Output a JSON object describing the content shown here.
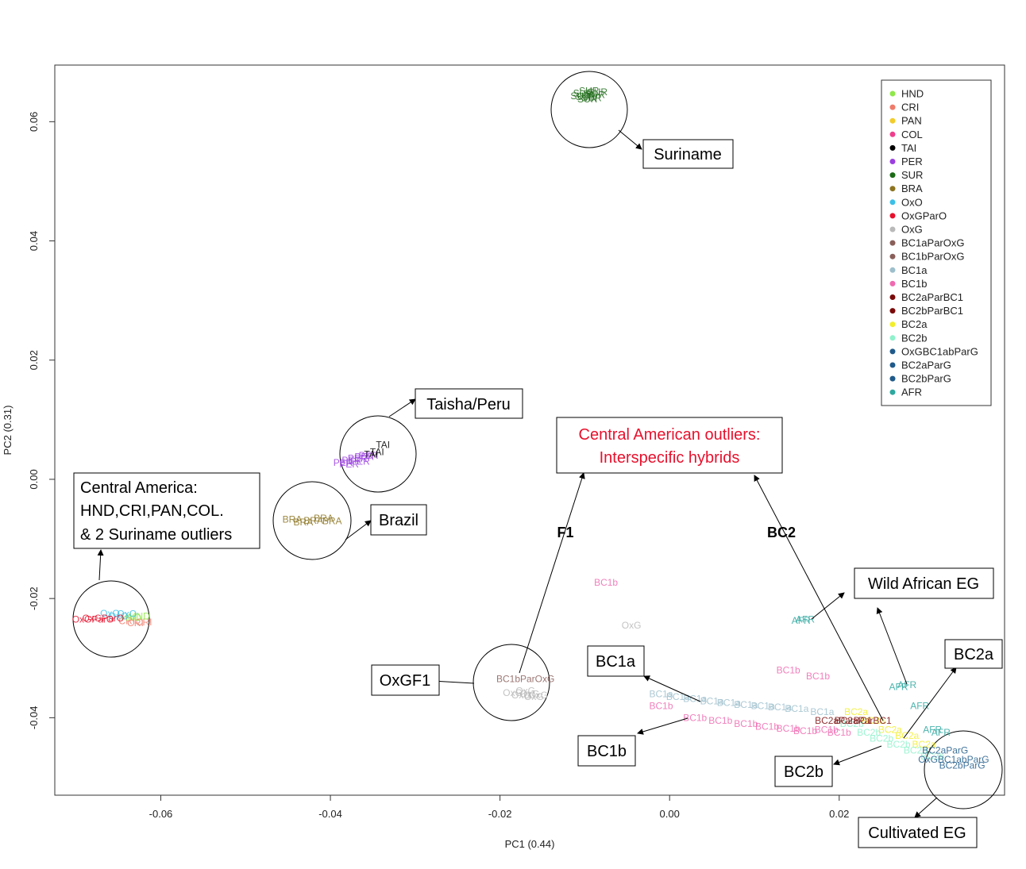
{
  "chart_data": {
    "type": "scatter",
    "xlabel": "PC1 (0.44)",
    "ylabel": "PC2 (0.31)",
    "xlim": [
      -0.0725,
      0.0395
    ],
    "ylim": [
      -0.053,
      0.0695
    ],
    "xticks": [
      "-0.06",
      "-0.04",
      "-0.02",
      "0.00",
      "0.02"
    ],
    "xtick_values": [
      -0.06,
      -0.04,
      -0.02,
      0.0,
      0.02
    ],
    "yticks": [
      "-0.04",
      "-0.02",
      "0.00",
      "0.02",
      "0.04",
      "0.06"
    ],
    "ytick_values": [
      -0.04,
      -0.02,
      0.0,
      0.02,
      0.04,
      0.06
    ],
    "legend": {
      "position": "top-right",
      "entries": [
        {
          "name": "HND",
          "color": "#8fe84a"
        },
        {
          "name": "CRI",
          "color": "#f07a6a"
        },
        {
          "name": "PAN",
          "color": "#f2cc2a"
        },
        {
          "name": "COL",
          "color": "#ef3f8c"
        },
        {
          "name": "TAI",
          "color": "#000000"
        },
        {
          "name": "PER",
          "color": "#9b3fe0"
        },
        {
          "name": "SUR",
          "color": "#1c6a16"
        },
        {
          "name": "BRA",
          "color": "#8c7420"
        },
        {
          "name": "OxO",
          "color": "#3cbfe8"
        },
        {
          "name": "OxGParO",
          "color": "#e8102c"
        },
        {
          "name": "OxG",
          "color": "#b9b9b9"
        },
        {
          "name": "BC1aParOxG",
          "color": "#8a5f5a"
        },
        {
          "name": "BC1bParOxG",
          "color": "#8a5f5a"
        },
        {
          "name": "BC1a",
          "color": "#9dbfcc"
        },
        {
          "name": "BC1b",
          "color": "#ef6ab0"
        },
        {
          "name": "BC2aParBC1",
          "color": "#7a0a0a"
        },
        {
          "name": "BC2bParBC1",
          "color": "#7a0a0a"
        },
        {
          "name": "BC2a",
          "color": "#f2ee2a"
        },
        {
          "name": "BC2b",
          "color": "#8ff2cc"
        },
        {
          "name": "OxGBC1abParG",
          "color": "#1f5a8a"
        },
        {
          "name": "BC2aParG",
          "color": "#1f5a8a"
        },
        {
          "name": "BC2bParG",
          "color": "#1f5a8a"
        },
        {
          "name": "AFR",
          "color": "#2fa8a0"
        }
      ]
    },
    "clusters": [
      {
        "group": "SUR",
        "color": "#1c6a16",
        "label": "SUR",
        "x": [
          -0.0102,
          -0.0095,
          -0.0088,
          -0.0099,
          -0.0092,
          -0.0085,
          -0.0105,
          -0.0097
        ],
        "y": [
          0.0648,
          0.0652,
          0.0645,
          0.0642,
          0.064,
          0.065,
          0.0643,
          0.0638
        ]
      },
      {
        "group": "PER",
        "color": "#9b3fe0",
        "label": "PER",
        "x": [
          -0.0385,
          -0.0375,
          -0.0368,
          -0.036,
          -0.0378,
          -0.0365,
          -0.0355
        ],
        "y": [
          0.0028,
          0.0032,
          0.0035,
          0.0038,
          0.0025,
          0.003,
          0.004
        ]
      },
      {
        "group": "TAI",
        "color": "#000000",
        "label": "TAI",
        "x": [
          -0.0352,
          -0.0345,
          -0.0338
        ],
        "y": [
          0.0042,
          0.0046,
          0.0058
        ]
      },
      {
        "group": "BRA",
        "color": "#8c7420",
        "label": "BRA",
        "x": [
          -0.0445,
          -0.0432,
          -0.042,
          -0.0408,
          -0.0398
        ],
        "y": [
          -0.0067,
          -0.0072,
          -0.0069,
          -0.0065,
          -0.007
        ]
      },
      {
        "group": "CRI",
        "color": "#f07a6a",
        "label": "CRI",
        "x": [
          -0.064,
          -0.063,
          -0.062
        ],
        "y": [
          -0.0238,
          -0.0241,
          -0.024
        ]
      },
      {
        "group": "HND",
        "color": "#8fe84a",
        "label": "HND",
        "x": [
          -0.0635,
          -0.0625
        ],
        "y": [
          -0.0232,
          -0.023
        ]
      },
      {
        "group": "OxO",
        "color": "#3cbfe8",
        "label": "OxO",
        "x": [
          -0.066,
          -0.065,
          -0.064
        ],
        "y": [
          -0.0225,
          -0.023,
          -0.0226
        ]
      },
      {
        "group": "OxGParO",
        "color": "#e8102c",
        "label": "OxGParO",
        "x": [
          -0.068,
          -0.0668
        ],
        "y": [
          -0.0235,
          -0.0233
        ]
      },
      {
        "group": "OxG",
        "color": "#b9b9b9",
        "label": "OxG",
        "x": [
          -0.0185,
          -0.0175,
          -0.0165,
          -0.016,
          -0.017,
          -0.0155,
          -0.0045
        ],
        "y": [
          -0.0358,
          -0.0362,
          -0.036,
          -0.0365,
          -0.0355,
          -0.0362,
          -0.0245
        ]
      },
      {
        "group": "BC1bParOxG",
        "color": "#8a5f5a",
        "label": "BC1bParOxG",
        "x": [
          -0.017
        ],
        "y": [
          -0.0335
        ]
      },
      {
        "group": "BC1a",
        "color": "#9dbfcc",
        "label": "BC1a",
        "x": [
          -0.001,
          0.001,
          0.003,
          0.005,
          0.007,
          0.009,
          0.011,
          0.013,
          0.015,
          0.018
        ],
        "y": [
          -0.036,
          -0.0365,
          -0.0368,
          -0.0372,
          -0.0375,
          -0.0378,
          -0.038,
          -0.0382,
          -0.0385,
          -0.039
        ]
      },
      {
        "group": "BC1b",
        "color": "#ef6ab0",
        "label": "BC1b",
        "x": [
          -0.0075,
          -0.001,
          0.003,
          0.006,
          0.009,
          0.0115,
          0.014,
          0.016,
          0.0185,
          0.02,
          0.014,
          0.0175
        ],
        "y": [
          -0.0173,
          -0.038,
          -0.04,
          -0.0405,
          -0.041,
          -0.0415,
          -0.0418,
          -0.0422,
          -0.042,
          -0.0425,
          -0.032,
          -0.033
        ]
      },
      {
        "group": "BC2a",
        "color": "#f2ee2a",
        "label": "BC2a",
        "x": [
          0.022,
          0.024,
          0.026,
          0.028,
          0.03
        ],
        "y": [
          -0.039,
          -0.0405,
          -0.042,
          -0.043,
          -0.0445
        ]
      },
      {
        "group": "BC2b",
        "color": "#8ff2cc",
        "label": "BC2b",
        "x": [
          0.0215,
          0.0235,
          0.025,
          0.027,
          0.029,
          0.031
        ],
        "y": [
          -0.041,
          -0.0425,
          -0.0435,
          -0.0445,
          -0.0455,
          -0.0465
        ]
      },
      {
        "group": "BC2aParBC1",
        "color": "#7a0a0a",
        "label": "BC2aParBC1",
        "x": [
          0.0205,
          0.0228
        ],
        "y": [
          -0.0405,
          -0.0405
        ]
      },
      {
        "group": "AFR",
        "color": "#2fa8a0",
        "label": "AFR",
        "x": [
          0.0155,
          0.016,
          0.027,
          0.028,
          0.0295,
          0.031,
          0.032
        ],
        "y": [
          -0.0237,
          -0.0235,
          -0.0348,
          -0.0345,
          -0.038,
          -0.042,
          -0.0425
        ]
      },
      {
        "group": "OxGBC1abParG",
        "color": "#1f5a8a",
        "label": "OxGBC1abParG",
        "x": [
          0.0335
        ],
        "y": [
          -0.047
        ]
      },
      {
        "group": "BC2aParG",
        "color": "#1f5a8a",
        "label": "BC2aParG",
        "x": [
          0.0325
        ],
        "y": [
          -0.0455
        ]
      },
      {
        "group": "BC2bParG",
        "color": "#1f5a8a",
        "label": "BC2bParG",
        "x": [
          0.0345
        ],
        "y": [
          -0.048
        ]
      }
    ],
    "annotations": [
      {
        "text": "Suriname"
      },
      {
        "text": "Taisha/Peru"
      },
      {
        "text": "Brazil"
      },
      {
        "lines": [
          "Central America:",
          "HND,CRI,PAN,COL.",
          "& 2 Suriname outliers"
        ]
      },
      {
        "lines": [
          "Central American outliers:",
          "Interspecific hybrids"
        ],
        "color": "#e8102c"
      },
      {
        "text": "Wild African EG"
      },
      {
        "text": "BC2a"
      },
      {
        "text": "BC1a"
      },
      {
        "text": "BC1b"
      },
      {
        "text": "BC2b"
      },
      {
        "text": "OxGF1"
      },
      {
        "text": "Cultivated EG"
      },
      {
        "text": "F1"
      },
      {
        "text": "BC2"
      }
    ]
  }
}
